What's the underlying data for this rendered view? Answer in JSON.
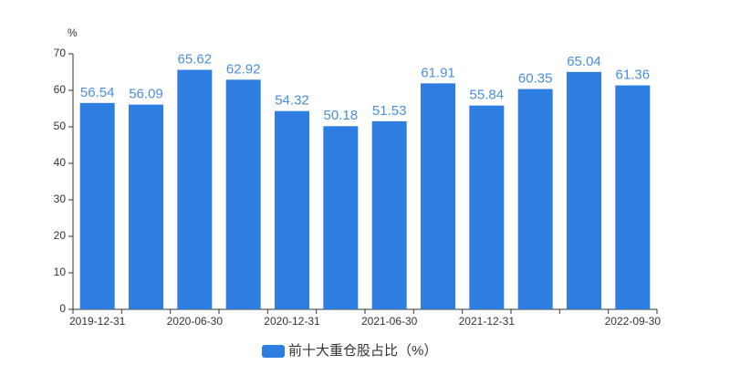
{
  "chart_data": {
    "type": "bar",
    "y_label": "%",
    "categories": [
      "2019-12-31",
      null,
      "2020-06-30",
      null,
      "2020-12-31",
      null,
      "2021-06-30",
      null,
      "2021-12-31",
      null,
      null,
      "2022-09-30"
    ],
    "series": [
      {
        "name": "前十大重仓股占比（%）",
        "color": "#2e7de0",
        "values": [
          56.54,
          56.09,
          65.62,
          62.92,
          54.32,
          50.18,
          51.53,
          61.91,
          55.84,
          60.35,
          65.04,
          61.36
        ]
      }
    ],
    "ylim": [
      0,
      70
    ],
    "yticks": [
      0,
      10,
      20,
      30,
      40,
      50,
      60,
      70
    ]
  }
}
